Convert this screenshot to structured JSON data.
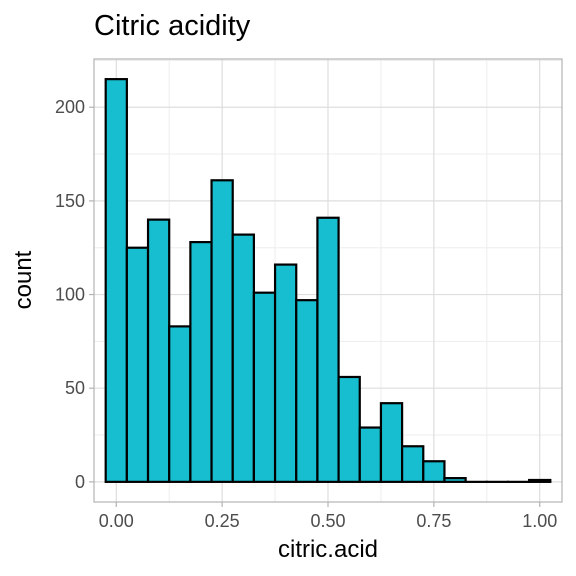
{
  "chart_data": {
    "type": "bar",
    "title": "Citric acidity",
    "xlabel": "citric.acid",
    "ylabel": "count",
    "bin_width": 0.05,
    "bins": [
      {
        "x": 0.0,
        "count": 215
      },
      {
        "x": 0.05,
        "count": 125
      },
      {
        "x": 0.1,
        "count": 140
      },
      {
        "x": 0.15,
        "count": 83
      },
      {
        "x": 0.2,
        "count": 128
      },
      {
        "x": 0.25,
        "count": 161
      },
      {
        "x": 0.3,
        "count": 132
      },
      {
        "x": 0.35,
        "count": 101
      },
      {
        "x": 0.4,
        "count": 116
      },
      {
        "x": 0.45,
        "count": 97
      },
      {
        "x": 0.5,
        "count": 141
      },
      {
        "x": 0.55,
        "count": 56
      },
      {
        "x": 0.6,
        "count": 29
      },
      {
        "x": 0.65,
        "count": 42
      },
      {
        "x": 0.7,
        "count": 19
      },
      {
        "x": 0.75,
        "count": 11
      },
      {
        "x": 0.8,
        "count": 2
      },
      {
        "x": 0.85,
        "count": 0
      },
      {
        "x": 0.9,
        "count": 0
      },
      {
        "x": 0.95,
        "count": 0
      },
      {
        "x": 1.0,
        "count": 1
      }
    ],
    "xlim": [
      -0.0526,
      1.0526
    ],
    "ylim": [
      -10.75,
      225.75
    ],
    "x_ticks": [
      {
        "value": 0.0,
        "label": "0.00"
      },
      {
        "value": 0.25,
        "label": "0.25"
      },
      {
        "value": 0.5,
        "label": "0.50"
      },
      {
        "value": 0.75,
        "label": "0.75"
      },
      {
        "value": 1.0,
        "label": "1.00"
      }
    ],
    "y_ticks": [
      {
        "value": 0,
        "label": "0"
      },
      {
        "value": 50,
        "label": "50"
      },
      {
        "value": 100,
        "label": "100"
      },
      {
        "value": 150,
        "label": "150"
      },
      {
        "value": 200,
        "label": "200"
      }
    ],
    "grid": true,
    "colors": {
      "bar_fill": "#17BECF",
      "bar_stroke": "#000000",
      "panel_border": "#B3B3B3",
      "grid_major": "#DEDEDE",
      "grid_minor": "#EDEDED",
      "tick_label": "#4D4D4D"
    }
  }
}
